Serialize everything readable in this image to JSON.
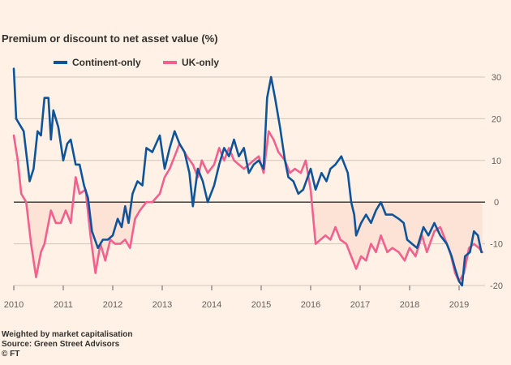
{
  "chart_data": {
    "type": "line",
    "title": "Premium or discount to net asset value (%)",
    "ylim": [
      -20,
      30
    ],
    "xlim": [
      2010.0,
      2019.5
    ],
    "yticks": [
      30,
      20,
      10,
      0,
      -10,
      -20
    ],
    "xticks": [
      2010,
      2011,
      2012,
      2013,
      2014,
      2015,
      2016,
      2017,
      2018,
      2019
    ],
    "fill_below_zero": true,
    "colors": {
      "background": "#fff1e5",
      "fill": "#fde2d6",
      "grid": "#cec6b9",
      "zero_line": "#33302e"
    },
    "series": [
      {
        "name": "Continent-only",
        "color": "#0f5499",
        "points": [
          [
            2010.0,
            32
          ],
          [
            2010.05,
            20
          ],
          [
            2010.2,
            17
          ],
          [
            2010.32,
            5
          ],
          [
            2010.4,
            8
          ],
          [
            2010.48,
            17
          ],
          [
            2010.55,
            16
          ],
          [
            2010.62,
            25
          ],
          [
            2010.7,
            25
          ],
          [
            2010.75,
            15
          ],
          [
            2010.8,
            22
          ],
          [
            2010.9,
            18
          ],
          [
            2011.0,
            10
          ],
          [
            2011.08,
            14
          ],
          [
            2011.15,
            15
          ],
          [
            2011.25,
            9
          ],
          [
            2011.33,
            9
          ],
          [
            2011.42,
            4
          ],
          [
            2011.5,
            1
          ],
          [
            2011.58,
            -7
          ],
          [
            2011.7,
            -11
          ],
          [
            2011.8,
            -9
          ],
          [
            2011.9,
            -9
          ],
          [
            2012.0,
            -8
          ],
          [
            2012.1,
            -4
          ],
          [
            2012.18,
            -6
          ],
          [
            2012.25,
            -1
          ],
          [
            2012.32,
            -5
          ],
          [
            2012.4,
            2
          ],
          [
            2012.5,
            5
          ],
          [
            2012.6,
            4
          ],
          [
            2012.68,
            13
          ],
          [
            2012.8,
            12
          ],
          [
            2012.95,
            16
          ],
          [
            2013.05,
            8
          ],
          [
            2013.15,
            13
          ],
          [
            2013.25,
            17
          ],
          [
            2013.35,
            14
          ],
          [
            2013.45,
            12
          ],
          [
            2013.55,
            7
          ],
          [
            2013.62,
            -1
          ],
          [
            2013.72,
            8
          ],
          [
            2013.82,
            5
          ],
          [
            2013.92,
            0
          ],
          [
            2014.05,
            4
          ],
          [
            2014.15,
            9
          ],
          [
            2014.25,
            13
          ],
          [
            2014.35,
            11
          ],
          [
            2014.45,
            15
          ],
          [
            2014.55,
            11
          ],
          [
            2014.65,
            13
          ],
          [
            2014.75,
            7
          ],
          [
            2014.85,
            9
          ],
          [
            2014.95,
            10
          ],
          [
            2015.05,
            8
          ],
          [
            2015.12,
            25
          ],
          [
            2015.2,
            30
          ],
          [
            2015.28,
            25
          ],
          [
            2015.38,
            18
          ],
          [
            2015.48,
            10
          ],
          [
            2015.55,
            6
          ],
          [
            2015.65,
            5
          ],
          [
            2015.75,
            2
          ],
          [
            2015.85,
            3
          ],
          [
            2016.0,
            8
          ],
          [
            2016.1,
            3
          ],
          [
            2016.22,
            7
          ],
          [
            2016.32,
            5
          ],
          [
            2016.4,
            8
          ],
          [
            2016.5,
            9
          ],
          [
            2016.62,
            11
          ],
          [
            2016.75,
            7
          ],
          [
            2016.82,
            0
          ],
          [
            2016.88,
            -3
          ],
          [
            2016.92,
            -8
          ],
          [
            2017.02,
            -5
          ],
          [
            2017.12,
            -3
          ],
          [
            2017.22,
            -5
          ],
          [
            2017.32,
            -2
          ],
          [
            2017.42,
            0
          ],
          [
            2017.52,
            -3
          ],
          [
            2017.65,
            -3
          ],
          [
            2017.78,
            -4
          ],
          [
            2017.88,
            -5
          ],
          [
            2017.95,
            -9
          ],
          [
            2018.05,
            -10
          ],
          [
            2018.15,
            -11
          ],
          [
            2018.28,
            -6
          ],
          [
            2018.38,
            -8
          ],
          [
            2018.5,
            -5
          ],
          [
            2018.62,
            -8
          ],
          [
            2018.75,
            -10
          ],
          [
            2018.85,
            -13
          ],
          [
            2018.92,
            -16
          ],
          [
            2019.0,
            -19
          ],
          [
            2019.06,
            -20
          ],
          [
            2019.12,
            -13
          ],
          [
            2019.22,
            -12
          ],
          [
            2019.3,
            -7
          ],
          [
            2019.38,
            -8
          ],
          [
            2019.45,
            -12
          ]
        ]
      },
      {
        "name": "UK-only",
        "color": "#f2608e",
        "points": [
          [
            2010.0,
            16
          ],
          [
            2010.08,
            10
          ],
          [
            2010.15,
            2
          ],
          [
            2010.25,
            0
          ],
          [
            2010.35,
            -10
          ],
          [
            2010.45,
            -18
          ],
          [
            2010.55,
            -12
          ],
          [
            2010.62,
            -10
          ],
          [
            2010.75,
            -2
          ],
          [
            2010.85,
            -5
          ],
          [
            2010.95,
            -5
          ],
          [
            2011.05,
            -2
          ],
          [
            2011.15,
            -5
          ],
          [
            2011.25,
            6
          ],
          [
            2011.33,
            2
          ],
          [
            2011.45,
            3
          ],
          [
            2011.55,
            -8
          ],
          [
            2011.65,
            -17
          ],
          [
            2011.75,
            -10
          ],
          [
            2011.85,
            -14
          ],
          [
            2011.95,
            -9
          ],
          [
            2012.05,
            -10
          ],
          [
            2012.15,
            -10
          ],
          [
            2012.25,
            -9
          ],
          [
            2012.35,
            -11
          ],
          [
            2012.45,
            -4
          ],
          [
            2012.55,
            -2
          ],
          [
            2012.68,
            0
          ],
          [
            2012.8,
            0
          ],
          [
            2012.95,
            2
          ],
          [
            2013.05,
            6
          ],
          [
            2013.15,
            8
          ],
          [
            2013.25,
            11
          ],
          [
            2013.35,
            14
          ],
          [
            2013.5,
            11
          ],
          [
            2013.62,
            9
          ],
          [
            2013.72,
            6
          ],
          [
            2013.8,
            10
          ],
          [
            2013.92,
            7
          ],
          [
            2014.05,
            9
          ],
          [
            2014.15,
            13
          ],
          [
            2014.25,
            10
          ],
          [
            2014.35,
            13
          ],
          [
            2014.45,
            10
          ],
          [
            2014.55,
            9
          ],
          [
            2014.65,
            8
          ],
          [
            2014.75,
            9
          ],
          [
            2014.85,
            10
          ],
          [
            2014.95,
            11
          ],
          [
            2015.05,
            7
          ],
          [
            2015.15,
            17
          ],
          [
            2015.25,
            15
          ],
          [
            2015.35,
            12
          ],
          [
            2015.48,
            10
          ],
          [
            2015.58,
            7
          ],
          [
            2015.68,
            8
          ],
          [
            2015.8,
            7
          ],
          [
            2015.9,
            10
          ],
          [
            2016.0,
            3
          ],
          [
            2016.1,
            -10
          ],
          [
            2016.2,
            -9
          ],
          [
            2016.3,
            -8
          ],
          [
            2016.4,
            -9
          ],
          [
            2016.5,
            -6
          ],
          [
            2016.6,
            -9
          ],
          [
            2016.72,
            -10
          ],
          [
            2016.82,
            -13
          ],
          [
            2016.92,
            -16
          ],
          [
            2017.02,
            -13
          ],
          [
            2017.12,
            -14
          ],
          [
            2017.22,
            -10
          ],
          [
            2017.32,
            -12
          ],
          [
            2017.42,
            -8
          ],
          [
            2017.55,
            -12
          ],
          [
            2017.65,
            -11
          ],
          [
            2017.78,
            -12
          ],
          [
            2017.9,
            -14
          ],
          [
            2018.0,
            -11
          ],
          [
            2018.12,
            -13
          ],
          [
            2018.25,
            -8
          ],
          [
            2018.35,
            -12
          ],
          [
            2018.5,
            -7
          ],
          [
            2018.62,
            -6
          ],
          [
            2018.72,
            -9
          ],
          [
            2018.82,
            -12
          ],
          [
            2018.92,
            -17
          ],
          [
            2019.0,
            -19
          ],
          [
            2019.1,
            -17
          ],
          [
            2019.2,
            -11
          ],
          [
            2019.3,
            -10
          ],
          [
            2019.4,
            -11
          ],
          [
            2019.47,
            -12
          ]
        ]
      }
    ]
  },
  "footer": {
    "note": "Weighted by market capitalisation",
    "source": "Source: Green Street Advisors",
    "credit": "© FT"
  }
}
